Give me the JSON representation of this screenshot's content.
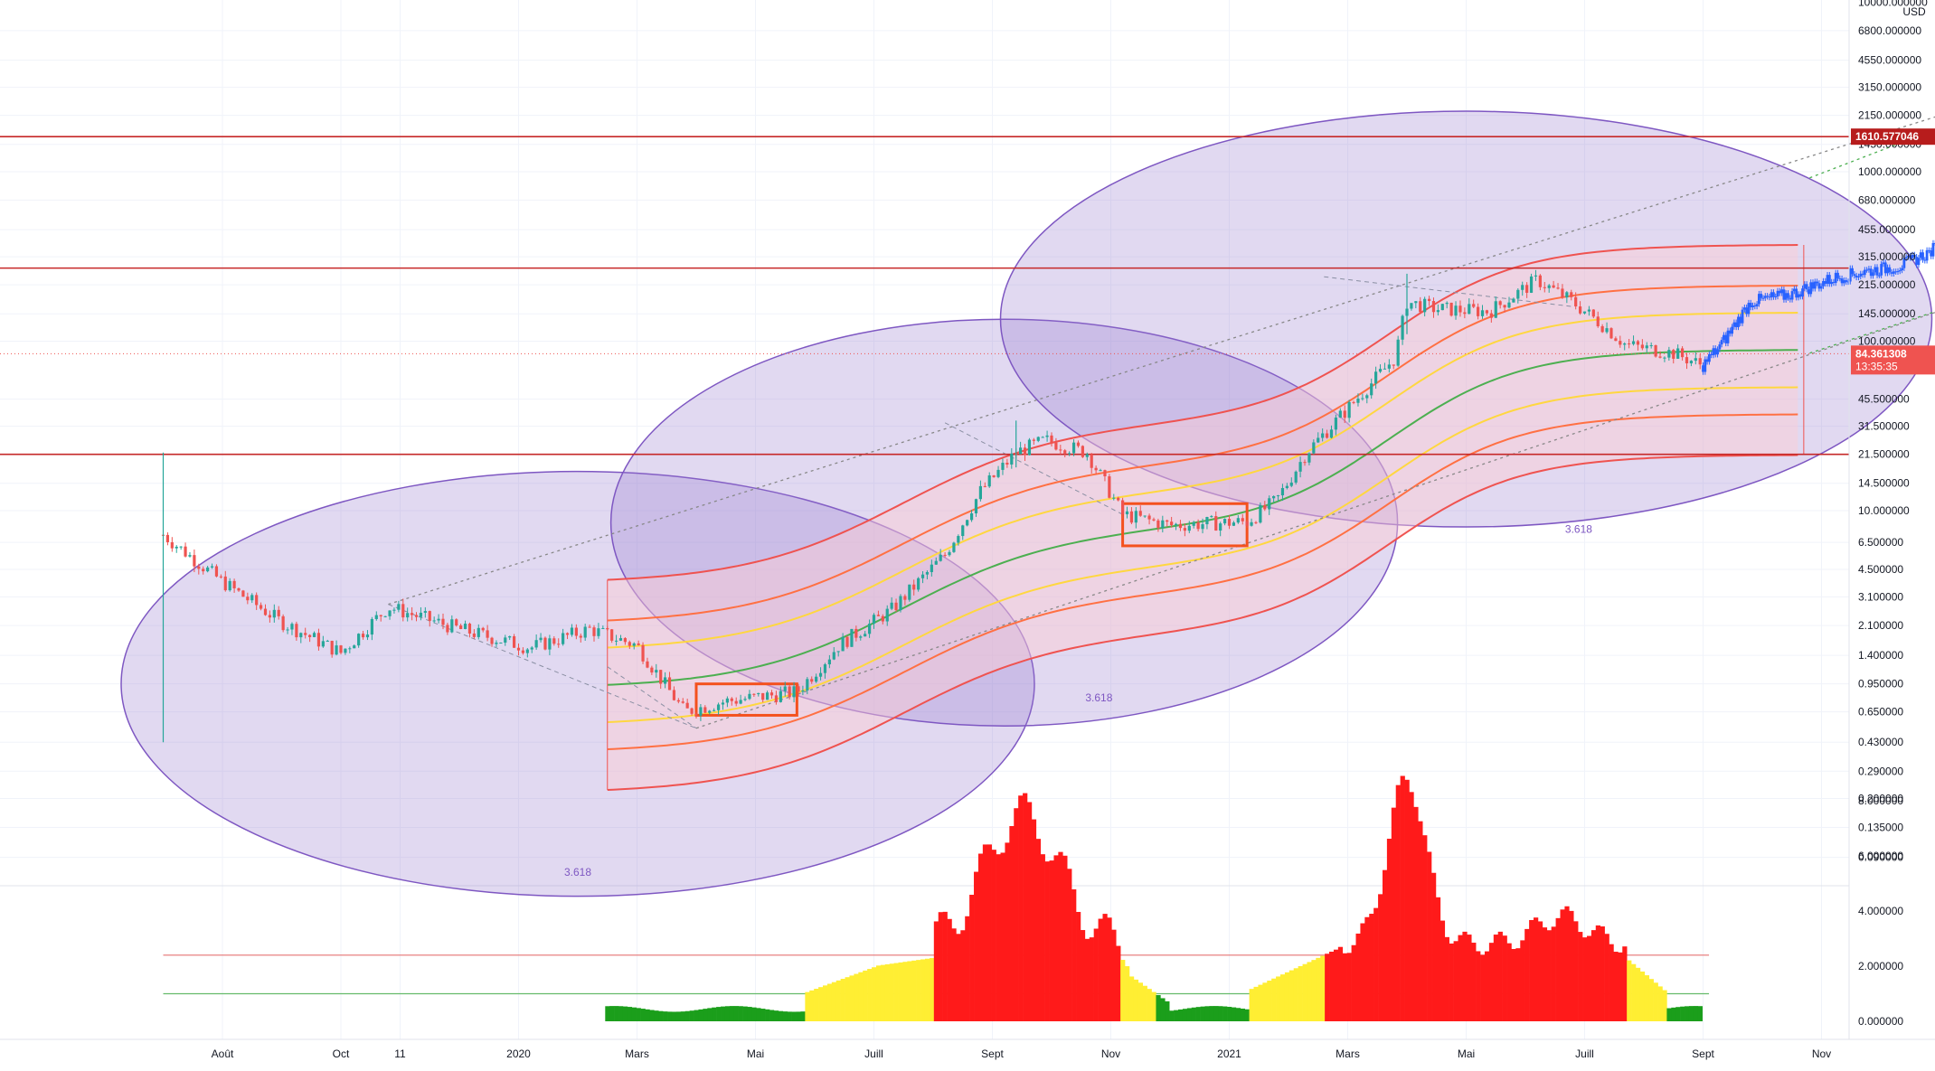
{
  "chart_data": [
    {
      "type": "candlestick",
      "currency_label": "USD",
      "y_scale": "log",
      "ylim": [
        0.06,
        10000
      ],
      "x_tick_labels": [
        "Août",
        "Oct",
        "11",
        "2020",
        "Mars",
        "Mai",
        "Juill",
        "Sept",
        "Nov",
        "2021",
        "Mars",
        "Mai",
        "Juill",
        "Sept",
        "Nov"
      ],
      "y_tick_labels": [
        {
          "value": 10000,
          "label": "10000.000000"
        },
        {
          "value": 6800,
          "label": "6800.000000"
        },
        {
          "value": 4550,
          "label": "4550.000000"
        },
        {
          "value": 3150,
          "label": "3150.000000"
        },
        {
          "value": 2150,
          "label": "2150.000000"
        },
        {
          "value": 1450,
          "label": "1450.000000"
        },
        {
          "value": 1000,
          "label": "1000.000000"
        },
        {
          "value": 680,
          "label": "680.000000"
        },
        {
          "value": 455,
          "label": "455.000000"
        },
        {
          "value": 315,
          "label": "315.000000"
        },
        {
          "value": 215,
          "label": "215.000000"
        },
        {
          "value": 145,
          "label": "145.000000"
        },
        {
          "value": 100,
          "label": "100.000000"
        },
        {
          "value": 45.5,
          "label": "45.500000"
        },
        {
          "value": 31.5,
          "label": "31.500000"
        },
        {
          "value": 21.5,
          "label": "21.500000"
        },
        {
          "value": 14.5,
          "label": "14.500000"
        },
        {
          "value": 10,
          "label": "10.000000"
        },
        {
          "value": 6.5,
          "label": "6.500000"
        },
        {
          "value": 4.5,
          "label": "4.500000"
        },
        {
          "value": 3.1,
          "label": "3.100000"
        },
        {
          "value": 2.1,
          "label": "2.100000"
        },
        {
          "value": 1.4,
          "label": "1.400000"
        },
        {
          "value": 0.95,
          "label": "0.950000"
        },
        {
          "value": 0.65,
          "label": "0.650000"
        },
        {
          "value": 0.43,
          "label": "0.430000"
        },
        {
          "value": 0.29,
          "label": "0.290000"
        },
        {
          "value": 0.2,
          "label": "0.200000"
        },
        {
          "value": 0.135,
          "label": "0.135000"
        },
        {
          "value": 0.09,
          "label": "0.090000"
        }
      ],
      "price_badges": [
        {
          "label": "1610.577046",
          "value": 1610.577046,
          "color": "#b71c1c"
        },
        {
          "label": "84.361308",
          "sub": "13:35:35",
          "value": 84.361308,
          "color": "#ef5350"
        }
      ],
      "horizontal_levels": [
        1610.577046,
        270,
        21.5
      ],
      "current_price": 84.361308,
      "fib_labels": [
        "3.618",
        "3.618",
        "3.618"
      ],
      "colors": {
        "up": "#26a69a",
        "down": "#ef5350",
        "projection": "#2962ff",
        "level": "#c62828",
        "ellipse_fill": "#9575cd",
        "ellipse_stroke": "#7e57c2"
      }
    },
    {
      "type": "histogram",
      "ylim": [
        0,
        9
      ],
      "y_tick_labels": [
        {
          "value": 8,
          "label": "8.000000"
        },
        {
          "value": 6,
          "label": "6.000000"
        },
        {
          "value": 4,
          "label": "4.000000"
        },
        {
          "value": 2,
          "label": "2.000000"
        },
        {
          "value": 0,
          "label": "0.000000"
        }
      ],
      "threshold_lines": [
        {
          "value": 2.4,
          "color": "#e57373"
        },
        {
          "value": 1.0,
          "color": "#66bb6a"
        }
      ],
      "colors": {
        "low": "#1b9e1b",
        "mid": "#ffee33",
        "high": "#ff1a1a"
      }
    }
  ]
}
